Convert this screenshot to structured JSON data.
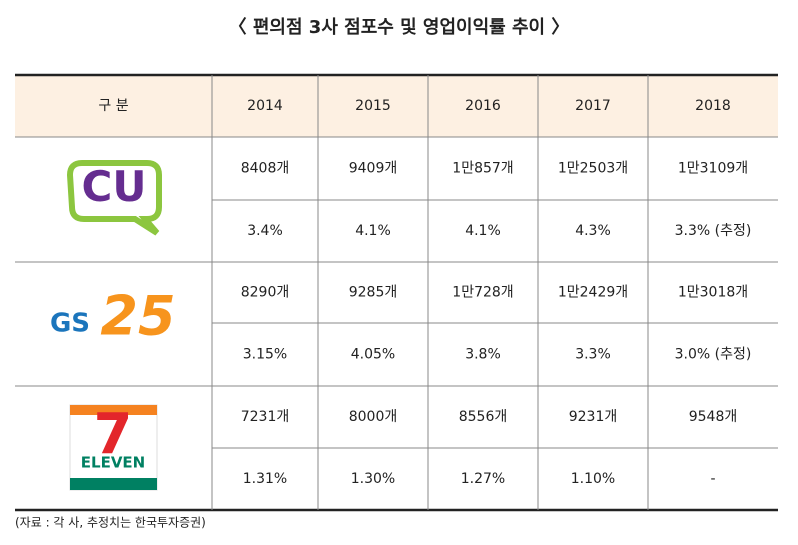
{
  "title": "〈 편의점 3사 점포수 및 영업이익률 추이 〉",
  "table": {
    "header": [
      "구   분",
      "2014",
      "2015",
      "2016",
      "2017",
      "2018"
    ],
    "groups": [
      {
        "logo": [
          "CU"
        ],
        "rows": [
          [
            "8408개",
            "9409개",
            "1만857개",
            "1만2503개",
            "1만3109개"
          ],
          [
            "3.4%",
            "4.1%",
            "4.1%",
            "4.3%",
            "3.3% (추정)"
          ]
        ]
      },
      {
        "logo": [
          "GS",
          "25"
        ],
        "rows": [
          [
            "8290개",
            "9285개",
            "1만728개",
            "1만2429개",
            "1만3018개"
          ],
          [
            "3.15%",
            "4.05%",
            "3.8%",
            "3.3%",
            "3.0% (추정)"
          ]
        ]
      },
      {
        "logo": [
          "7",
          "ELEVEN"
        ],
        "rows": [
          [
            "7231개",
            "8000개",
            "8556개",
            "9231개",
            "9548개"
          ],
          [
            "1.31%",
            "1.30%",
            "1.27%",
            "1.10%",
            "-"
          ]
        ]
      }
    ]
  },
  "footnote": "(자료 : 각 사, 추정치는 한국투자증권)"
}
